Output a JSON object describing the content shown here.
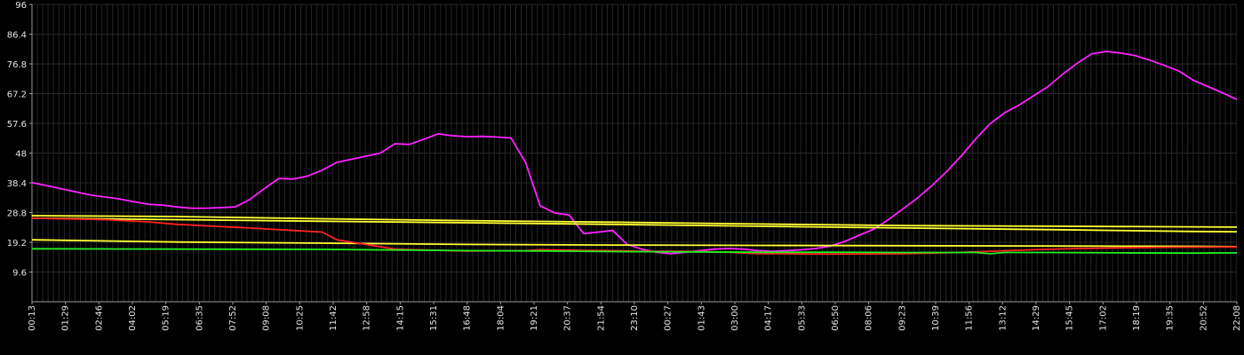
{
  "chart_data": {
    "type": "line",
    "ylim": [
      0,
      96
    ],
    "y_ticks": [
      96,
      86.4,
      76.8,
      67.2,
      57.6,
      48,
      38.4,
      28.8,
      19.2,
      9.6
    ],
    "x_ticks": [
      "00:13",
      "01:29",
      "02:46",
      "04:02",
      "05:19",
      "06:35",
      "07:52",
      "09:08",
      "10:25",
      "11:42",
      "12:58",
      "14:15",
      "15:31",
      "16:48",
      "18:04",
      "19:21",
      "20:37",
      "21:54",
      "23:10",
      "00:27",
      "01:43",
      "03:00",
      "04:17",
      "05:33",
      "06:50",
      "08:06",
      "09:23",
      "10:39",
      "11:56",
      "13:12",
      "14:29",
      "15:45",
      "17:02",
      "18:19",
      "19:35",
      "20:52",
      "22:08"
    ],
    "grid": true,
    "background": "#000000",
    "grid_color": "#262626",
    "axis_color": "#9a9a9a",
    "series": [
      {
        "color": "#ff22ff",
        "points": [
          [
            0,
            38.5
          ],
          [
            2,
            36.5
          ],
          [
            4,
            34.5
          ],
          [
            6,
            33.2
          ],
          [
            7,
            32.3
          ],
          [
            8,
            31.5
          ],
          [
            9,
            31.2
          ],
          [
            10,
            30.6
          ],
          [
            11,
            30.2
          ],
          [
            12,
            30.2
          ],
          [
            13,
            30.4
          ],
          [
            14,
            30.6
          ],
          [
            15,
            33.0
          ],
          [
            16,
            36.5
          ],
          [
            17,
            39.8
          ],
          [
            18,
            39.6
          ],
          [
            19,
            40.6
          ],
          [
            20,
            42.5
          ],
          [
            21,
            45.0
          ],
          [
            22,
            46.0
          ],
          [
            23,
            47.0
          ],
          [
            24,
            48.0
          ],
          [
            25,
            51.0
          ],
          [
            26,
            50.8
          ],
          [
            27,
            52.5
          ],
          [
            28,
            54.2
          ],
          [
            29,
            53.6
          ],
          [
            30,
            53.3
          ],
          [
            31,
            53.4
          ],
          [
            32,
            53.2
          ],
          [
            33,
            52.9
          ],
          [
            34,
            45.0
          ],
          [
            35,
            31.0
          ],
          [
            36,
            28.7
          ],
          [
            37,
            28.0
          ],
          [
            38,
            22.0
          ],
          [
            39,
            22.5
          ],
          [
            40,
            23.0
          ],
          [
            41,
            18.5
          ],
          [
            42,
            17.0
          ],
          [
            43,
            16.0
          ],
          [
            44,
            15.5
          ],
          [
            45,
            16.0
          ],
          [
            46,
            16.5
          ],
          [
            47,
            17.0
          ],
          [
            48,
            17.2
          ],
          [
            49,
            17.0
          ],
          [
            50,
            16.5
          ],
          [
            51,
            16.3
          ],
          [
            52,
            16.5
          ],
          [
            53,
            16.8
          ],
          [
            54,
            17.2
          ],
          [
            55,
            18.0
          ],
          [
            56,
            19.5
          ],
          [
            57,
            21.5
          ],
          [
            58,
            23.5
          ],
          [
            59,
            26.5
          ],
          [
            60,
            30.0
          ],
          [
            61,
            33.5
          ],
          [
            62,
            37.5
          ],
          [
            63,
            42.0
          ],
          [
            64,
            47.0
          ],
          [
            65,
            52.5
          ],
          [
            66,
            57.5
          ],
          [
            67,
            61.0
          ],
          [
            68,
            63.5
          ],
          [
            69,
            66.5
          ],
          [
            70,
            69.5
          ],
          [
            71,
            73.5
          ],
          [
            72,
            77.0
          ],
          [
            73,
            80.0
          ],
          [
            74,
            80.8
          ],
          [
            75,
            80.3
          ],
          [
            76,
            79.5
          ],
          [
            77,
            78.0
          ],
          [
            78,
            76.3
          ],
          [
            79,
            74.5
          ],
          [
            80,
            71.5
          ],
          [
            81,
            69.5
          ],
          [
            82,
            67.5
          ],
          [
            83,
            65.3
          ]
        ]
      },
      {
        "color": "#ffff33",
        "points": [
          [
            0,
            27.8
          ],
          [
            10,
            27.5
          ],
          [
            20,
            26.8
          ],
          [
            30,
            26.2
          ],
          [
            40,
            25.7
          ],
          [
            50,
            25.1
          ],
          [
            60,
            24.6
          ],
          [
            70,
            24.4
          ],
          [
            80,
            24.2
          ],
          [
            83,
            24.1
          ]
        ]
      },
      {
        "color": "#ffff33",
        "points": [
          [
            0,
            27.0
          ],
          [
            10,
            26.5
          ],
          [
            20,
            26.0
          ],
          [
            30,
            25.5
          ],
          [
            40,
            25.0
          ],
          [
            50,
            24.4
          ],
          [
            60,
            23.8
          ],
          [
            70,
            23.3
          ],
          [
            80,
            22.7
          ],
          [
            83,
            22.6
          ]
        ]
      },
      {
        "color": "#ffff33",
        "points": [
          [
            0,
            20.0
          ],
          [
            10,
            19.3
          ],
          [
            20,
            18.9
          ],
          [
            30,
            18.5
          ],
          [
            40,
            18.3
          ],
          [
            50,
            18.2
          ],
          [
            60,
            18.1
          ],
          [
            70,
            18.0
          ],
          [
            80,
            17.9
          ],
          [
            83,
            17.8
          ]
        ]
      },
      {
        "color": "#ff2222",
        "points": [
          [
            0,
            27.0
          ],
          [
            5,
            26.5
          ],
          [
            8,
            25.8
          ],
          [
            10,
            25.0
          ],
          [
            15,
            23.8
          ],
          [
            18,
            23.0
          ],
          [
            20,
            22.5
          ],
          [
            21,
            20.0
          ],
          [
            23,
            18.5
          ],
          [
            25,
            17.0
          ],
          [
            28,
            16.6
          ],
          [
            30,
            16.4
          ],
          [
            34,
            16.5
          ],
          [
            35,
            16.8
          ],
          [
            38,
            16.6
          ],
          [
            40,
            16.5
          ],
          [
            42,
            16.3
          ],
          [
            45,
            16.3
          ],
          [
            48,
            16.0
          ],
          [
            50,
            15.5
          ],
          [
            52,
            15.5
          ],
          [
            55,
            15.4
          ],
          [
            60,
            15.5
          ],
          [
            63,
            15.8
          ],
          [
            66,
            16.3
          ],
          [
            69,
            16.8
          ],
          [
            72,
            17.2
          ],
          [
            75,
            17.4
          ],
          [
            78,
            17.6
          ],
          [
            83,
            17.7
          ]
        ]
      },
      {
        "color": "#22ee22",
        "points": [
          [
            0,
            17.1
          ],
          [
            10,
            17.0
          ],
          [
            20,
            16.9
          ],
          [
            25,
            16.7
          ],
          [
            30,
            16.5
          ],
          [
            35,
            16.4
          ],
          [
            40,
            16.2
          ],
          [
            45,
            16.1
          ],
          [
            50,
            16.0
          ],
          [
            55,
            16.0
          ],
          [
            60,
            15.9
          ],
          [
            65,
            15.9
          ],
          [
            66,
            15.5
          ],
          [
            67,
            15.9
          ],
          [
            70,
            15.9
          ],
          [
            75,
            15.8
          ],
          [
            80,
            15.7
          ],
          [
            83,
            15.8
          ]
        ]
      }
    ]
  }
}
